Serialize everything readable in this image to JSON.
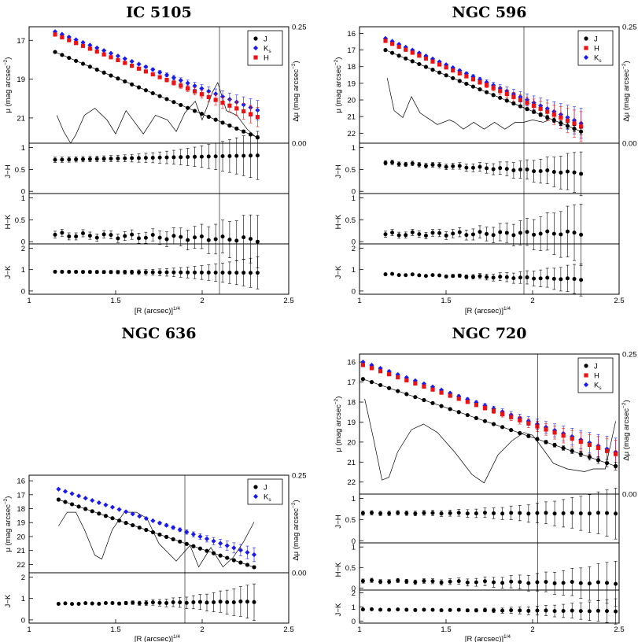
{
  "figure": {
    "x_axis_label": "[R (arcsec)]",
    "x_axis_label_sup": "1/4",
    "x_ticks": [
      "1",
      "1.5",
      "2",
      "2.5"
    ],
    "xlim": [
      1,
      2.5
    ],
    "mu_label": "μ (mag arcsec",
    "mu_label_sup": "−2",
    "dmu_label": "Δμ (mag arcsec",
    "dmu_label_sup": "−2",
    "dmu_ticks": [
      "0.25",
      "0.00"
    ],
    "series_colors": {
      "J": "#000000",
      "H": "#ee1111",
      "K": "#1a1aee"
    }
  },
  "chart_data": [
    {
      "type": "scatter",
      "title": "IC 5105",
      "xlabel": "[R (arcsec)]^1/4",
      "vline_x": 2.1,
      "mu": {
        "ylabel": "μ (mag arcsec^-2)",
        "ylim": [
          22.3,
          16.3
        ],
        "yticks": [
          "17",
          "19",
          "21"
        ],
        "legend": [
          {
            "key": "J",
            "label": "J",
            "marker": "circle"
          },
          {
            "key": "K",
            "label": "K",
            "sub": "s",
            "marker": "diamond"
          },
          {
            "key": "H",
            "label": "H",
            "marker": "square"
          }
        ],
        "series": [
          {
            "key": "K",
            "x0": 1.15,
            "x1": 2.32,
            "y0": 16.55,
            "y1": 20.6,
            "err0": 0.02,
            "err1": 0.5
          },
          {
            "key": "H",
            "x0": 1.15,
            "x1": 2.32,
            "y0": 16.7,
            "y1": 20.95,
            "err0": 0.02,
            "err1": 0.5
          },
          {
            "key": "J",
            "x0": 1.15,
            "x1": 2.32,
            "y0": 17.6,
            "y1": 22.0,
            "err0": 0.02,
            "err1": 0.08
          }
        ]
      },
      "residual": [
        [
          1.16,
          0.06
        ],
        [
          1.2,
          0.025
        ],
        [
          1.24,
          0.0
        ],
        [
          1.27,
          0.018
        ],
        [
          1.32,
          0.06
        ],
        [
          1.38,
          0.075
        ],
        [
          1.45,
          0.05
        ],
        [
          1.5,
          0.02
        ],
        [
          1.56,
          0.07
        ],
        [
          1.6,
          0.05
        ],
        [
          1.66,
          0.02
        ],
        [
          1.73,
          0.06
        ],
        [
          1.8,
          0.05
        ],
        [
          1.85,
          0.025
        ],
        [
          1.9,
          0.065
        ],
        [
          1.96,
          0.09
        ],
        [
          2.0,
          0.05
        ],
        [
          2.06,
          0.11
        ],
        [
          2.09,
          0.13
        ],
        [
          2.14,
          0.07
        ],
        [
          2.2,
          0.06
        ],
        [
          2.26,
          0.03
        ],
        [
          2.32,
          0.01
        ]
      ],
      "colors": [
        {
          "ylabel": "J−H",
          "ticks": [
            "1",
            "0.5",
            "0"
          ],
          "ylim": [
            -0.05,
            1.1
          ],
          "y0": 0.72,
          "y1": 0.82,
          "yjit": 0,
          "err0": 0.06,
          "err1": 0.55
        },
        {
          "ylabel": "H−K",
          "ticks": [
            "1",
            "0.5",
            "0"
          ],
          "ylim": [
            -0.05,
            1.1
          ],
          "y0": 0.16,
          "y1": 0.05,
          "yjit": 0.05,
          "err0": 0.08,
          "err1": 0.6
        },
        {
          "ylabel": "J−K",
          "ticks": [
            "2",
            "1",
            "0"
          ],
          "ylim": [
            -0.15,
            2.2
          ],
          "y0": 0.9,
          "y1": 0.85,
          "yjit": 0,
          "err0": 0.06,
          "err1": 0.75
        }
      ]
    },
    {
      "type": "scatter",
      "title": "NGC 596",
      "xlabel": "[R (arcsec)]^1/4",
      "vline_x": 1.95,
      "mu": {
        "ylabel": "μ (mag arcsec^-2)",
        "ylim": [
          22.6,
          15.6
        ],
        "yticks": [
          "16",
          "17",
          "18",
          "19",
          "20",
          "21",
          "22"
        ],
        "legend": [
          {
            "key": "J",
            "label": "J",
            "marker": "circle"
          },
          {
            "key": "H",
            "label": "H",
            "marker": "square"
          },
          {
            "key": "K",
            "label": "K",
            "sub": "s",
            "marker": "diamond"
          }
        ],
        "series": [
          {
            "key": "K",
            "x0": 1.15,
            "x1": 2.28,
            "y0": 16.3,
            "y1": 21.4,
            "err0": 0.03,
            "err1": 0.9
          },
          {
            "key": "H",
            "x0": 1.15,
            "x1": 2.28,
            "y0": 16.45,
            "y1": 21.6,
            "err0": 0.03,
            "err1": 0.9
          },
          {
            "key": "J",
            "x0": 1.15,
            "x1": 2.28,
            "y0": 17.0,
            "y1": 21.9,
            "err0": 0.02,
            "err1": 0.2
          }
        ]
      },
      "residual": [
        [
          1.16,
          0.14
        ],
        [
          1.2,
          0.07
        ],
        [
          1.25,
          0.055
        ],
        [
          1.3,
          0.1
        ],
        [
          1.35,
          0.065
        ],
        [
          1.45,
          0.04
        ],
        [
          1.52,
          0.05
        ],
        [
          1.55,
          0.045
        ],
        [
          1.6,
          0.03
        ],
        [
          1.66,
          0.045
        ],
        [
          1.72,
          0.03
        ],
        [
          1.78,
          0.045
        ],
        [
          1.84,
          0.03
        ],
        [
          1.9,
          0.045
        ],
        [
          1.95,
          0.045
        ],
        [
          2.0,
          0.05
        ],
        [
          2.06,
          0.045
        ],
        [
          2.1,
          0.05
        ]
      ],
      "colors": [
        {
          "ylabel": "J−H",
          "ticks": [
            "1",
            "0.5",
            "0"
          ],
          "ylim": [
            -0.05,
            1.1
          ],
          "y0": 0.65,
          "y1": 0.42,
          "yjit": 0.02,
          "err0": 0.05,
          "err1": 0.5
        },
        {
          "ylabel": "H−K",
          "ticks": [
            "1",
            "0.5",
            "0"
          ],
          "ylim": [
            -0.05,
            1.1
          ],
          "y0": 0.17,
          "y1": 0.2,
          "yjit": 0.04,
          "err0": 0.07,
          "err1": 0.7
        },
        {
          "ylabel": "J−K",
          "ticks": [
            "2",
            "1",
            "0"
          ],
          "ylim": [
            -0.15,
            2.2
          ],
          "y0": 0.78,
          "y1": 0.55,
          "yjit": 0.03,
          "err0": 0.04,
          "err1": 0.75
        }
      ]
    },
    {
      "type": "scatter",
      "title": "NGC 636",
      "xlabel": "[R (arcsec)]^1/4",
      "vline_x": 1.9,
      "mu": {
        "ylabel": "μ (mag arcsec^-2)",
        "ylim": [
          22.6,
          15.6
        ],
        "yticks": [
          "16",
          "17",
          "18",
          "19",
          "20",
          "21",
          "22"
        ],
        "legend": [
          {
            "key": "J",
            "label": "J",
            "marker": "circle"
          },
          {
            "key": "K",
            "label": "K",
            "sub": "s",
            "marker": "diamond"
          }
        ],
        "series": [
          {
            "key": "K",
            "x0": 1.17,
            "x1": 2.3,
            "y0": 16.6,
            "y1": 21.3,
            "err0": 0.02,
            "err1": 0.5
          },
          {
            "key": "J",
            "x0": 1.17,
            "x1": 2.3,
            "y0": 17.35,
            "y1": 22.2,
            "err0": 0.02,
            "err1": 0.1
          }
        ]
      },
      "residual": [
        [
          1.17,
          0.12
        ],
        [
          1.22,
          0.155
        ],
        [
          1.27,
          0.155
        ],
        [
          1.32,
          0.11
        ],
        [
          1.38,
          0.045
        ],
        [
          1.42,
          0.035
        ],
        [
          1.48,
          0.11
        ],
        [
          1.55,
          0.155
        ],
        [
          1.62,
          0.155
        ],
        [
          1.68,
          0.14
        ],
        [
          1.75,
          0.075
        ],
        [
          1.85,
          0.03
        ],
        [
          1.93,
          0.07
        ],
        [
          1.98,
          0.015
        ],
        [
          2.05,
          0.065
        ],
        [
          2.12,
          0.015
        ],
        [
          2.18,
          0.04
        ],
        [
          2.24,
          0.08
        ],
        [
          2.3,
          0.13
        ]
      ],
      "colors": [
        {
          "ylabel": "J−K",
          "ticks": [
            "2",
            "1",
            "0"
          ],
          "ylim": [
            -0.15,
            2.2
          ],
          "y0": 0.75,
          "y1": 0.85,
          "yjit": 0.02,
          "err0": 0.04,
          "err1": 0.85
        }
      ]
    },
    {
      "type": "scatter",
      "title": "NGC 720",
      "xlabel": "[R (arcsec)]^1/4",
      "vline_x": 2.03,
      "mu": {
        "ylabel": "μ (mag arcsec^-2)",
        "ylim": [
          22.6,
          15.6
        ],
        "yticks": [
          "16",
          "17",
          "18",
          "19",
          "20",
          "21",
          "22"
        ],
        "legend": [
          {
            "key": "J",
            "label": "J",
            "marker": "circle"
          },
          {
            "key": "H",
            "label": "H",
            "marker": "square"
          },
          {
            "key": "K",
            "label": "K",
            "sub": "s",
            "marker": "diamond"
          }
        ],
        "series": [
          {
            "key": "K",
            "x0": 1.02,
            "x1": 2.48,
            "y0": 16.0,
            "y1": 20.5,
            "err0": 0.03,
            "err1": 0.7
          },
          {
            "key": "H",
            "x0": 1.02,
            "x1": 2.48,
            "y0": 16.15,
            "y1": 20.6,
            "err0": 0.03,
            "err1": 0.7
          },
          {
            "key": "J",
            "x0": 1.02,
            "x1": 2.48,
            "y0": 16.85,
            "y1": 21.2,
            "err0": 0.02,
            "err1": 0.2
          }
        ]
      },
      "residual": [
        [
          1.03,
          0.17
        ],
        [
          1.08,
          0.1
        ],
        [
          1.13,
          0.025
        ],
        [
          1.17,
          0.03
        ],
        [
          1.22,
          0.075
        ],
        [
          1.3,
          0.115
        ],
        [
          1.37,
          0.125
        ],
        [
          1.45,
          0.11
        ],
        [
          1.55,
          0.075
        ],
        [
          1.65,
          0.035
        ],
        [
          1.72,
          0.02
        ],
        [
          1.8,
          0.07
        ],
        [
          1.88,
          0.095
        ],
        [
          1.95,
          0.11
        ],
        [
          2.0,
          0.105
        ],
        [
          2.05,
          0.085
        ],
        [
          2.12,
          0.055
        ],
        [
          2.2,
          0.045
        ],
        [
          2.3,
          0.04
        ],
        [
          2.35,
          0.045
        ],
        [
          2.42,
          0.045
        ],
        [
          2.48,
          0.13
        ]
      ],
      "colors": [
        {
          "ylabel": "J−H",
          "ticks": [
            "1",
            "0.5",
            "0"
          ],
          "ylim": [
            -0.05,
            1.1
          ],
          "y0": 0.65,
          "y1": 0.65,
          "yjit": 0.01,
          "err0": 0.05,
          "err1": 0.6
        },
        {
          "ylabel": "H−K",
          "ticks": [
            "1",
            "0.5",
            "0"
          ],
          "ylim": [
            -0.05,
            1.1
          ],
          "y0": 0.17,
          "y1": 0.12,
          "yjit": 0.02,
          "err0": 0.05,
          "err1": 0.55
        },
        {
          "ylabel": "J−K",
          "ticks": [
            "2",
            "1",
            "0"
          ],
          "ylim": [
            -0.15,
            2.2
          ],
          "y0": 0.82,
          "y1": 0.7,
          "yjit": 0.02,
          "err0": 0.04,
          "err1": 0.9
        }
      ]
    }
  ]
}
